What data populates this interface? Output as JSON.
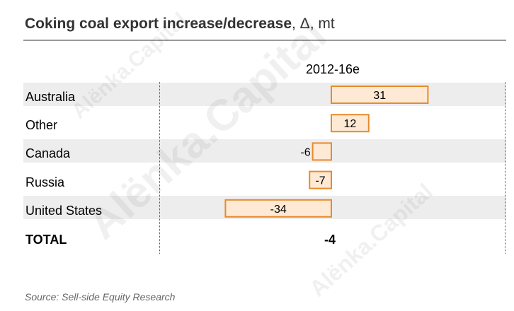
{
  "header": {
    "title_main": "Coking coal export increase/decrease",
    "title_unit": ", Δ, mt"
  },
  "footer": {
    "source": "Source: Sell-side Equity Research"
  },
  "watermark": "Alënka.Capital",
  "colors": {
    "bar_fill": "#fde9d4",
    "bar_stroke": "#e98a2c",
    "band": "#ededed"
  },
  "chart_data": {
    "type": "bar",
    "orientation": "horizontal",
    "column_header": "2012-16e",
    "categories": [
      "Australia",
      "Other",
      "Canada",
      "Russia",
      "United States"
    ],
    "values": [
      31,
      12,
      -6,
      -7,
      -34
    ],
    "total": {
      "label": "TOTAL",
      "value": "-4"
    },
    "xlim": [
      -34,
      31
    ],
    "grid": false
  }
}
